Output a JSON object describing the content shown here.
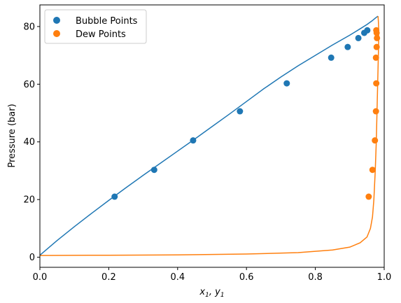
{
  "chart_data": {
    "type": "scatter",
    "xlabel": "x",
    "xlabel_sub1": "1",
    "xlabel_sep": ", y",
    "xlabel_sub2": "1",
    "ylabel": "Pressure (bar)",
    "xlim": [
      0,
      1
    ],
    "ylim": [
      -3.5,
      87.5
    ],
    "x_ticks": [
      0.0,
      0.2,
      0.4,
      0.6,
      0.8,
      1.0
    ],
    "x_tick_labels": [
      "0.0",
      "0.2",
      "0.4",
      "0.6",
      "0.8",
      "1.0"
    ],
    "y_ticks": [
      0,
      20,
      40,
      60,
      80
    ],
    "y_tick_labels": [
      "0",
      "20",
      "40",
      "60",
      "80"
    ],
    "grid": false,
    "legend_position": "top-left",
    "colors": {
      "bubble": "#1f77b4",
      "dew": "#ff7f0e"
    },
    "series": [
      {
        "name": "Bubble Points",
        "kind": "scatter",
        "color": "#1f77b4",
        "x": [
          0.217,
          0.332,
          0.445,
          0.581,
          0.717,
          0.846,
          0.894,
          0.925,
          0.942,
          0.951
        ],
        "y": [
          21.0,
          30.3,
          40.5,
          50.6,
          60.3,
          69.2,
          72.9,
          76.0,
          77.8,
          78.7
        ]
      },
      {
        "name": "Dew Points",
        "kind": "scatter",
        "color": "#ff7f0e",
        "x": [
          0.955,
          0.966,
          0.973,
          0.976,
          0.977,
          0.976,
          0.978,
          0.979,
          0.978,
          0.977
        ],
        "y": [
          21.0,
          30.3,
          40.5,
          50.6,
          60.3,
          69.2,
          72.9,
          76.0,
          77.8,
          78.7
        ]
      },
      {
        "kind": "line",
        "color": "#1f77b4",
        "x": [
          0.0,
          0.05,
          0.1,
          0.15,
          0.2,
          0.25,
          0.3,
          0.35,
          0.4,
          0.45,
          0.5,
          0.55,
          0.6,
          0.65,
          0.7,
          0.75,
          0.8,
          0.85,
          0.9,
          0.93,
          0.95,
          0.965,
          0.975,
          0.982
        ],
        "y": [
          0.7,
          5.8,
          10.6,
          15.2,
          19.7,
          24.1,
          28.4,
          32.6,
          36.8,
          41.0,
          45.3,
          49.6,
          54.0,
          58.4,
          62.5,
          66.4,
          70.0,
          73.6,
          77.0,
          79.2,
          80.7,
          82.0,
          83.0,
          83.6
        ]
      },
      {
        "kind": "line",
        "color": "#ff7f0e",
        "x": [
          0.0,
          0.2,
          0.4,
          0.6,
          0.75,
          0.85,
          0.9,
          0.93,
          0.95,
          0.96,
          0.966,
          0.97,
          0.974,
          0.977,
          0.979,
          0.981,
          0.983,
          0.984,
          0.984,
          0.983,
          0.982
        ],
        "y": [
          0.6,
          0.7,
          0.8,
          1.1,
          1.6,
          2.5,
          3.5,
          5.0,
          7.0,
          10.0,
          14.0,
          20.0,
          30.0,
          40.0,
          50.0,
          60.0,
          70.0,
          76.0,
          79.0,
          82.0,
          83.6
        ]
      }
    ]
  }
}
